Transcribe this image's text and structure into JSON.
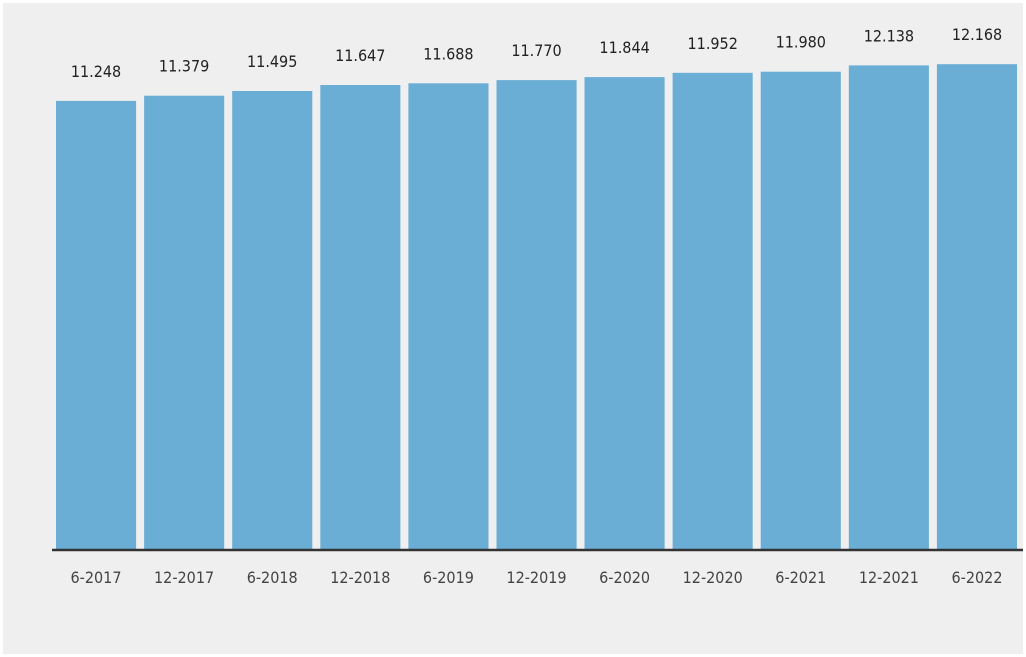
{
  "chart_data": {
    "type": "bar",
    "categories": [
      "6-2017",
      "12-2017",
      "6-2018",
      "12-2018",
      "6-2019",
      "12-2019",
      "6-2020",
      "12-2020",
      "6-2021",
      "12-2021",
      "6-2022"
    ],
    "values": [
      11248,
      11379,
      11495,
      11647,
      11688,
      11770,
      11844,
      11952,
      11980,
      12138,
      12168
    ],
    "data_labels": [
      "11.248",
      "11.379",
      "11.495",
      "11.647",
      "11.688",
      "11.770",
      "11.844",
      "11.952",
      "11.980",
      "12.138",
      "12.168"
    ],
    "ylim": [
      0,
      13700
    ],
    "grid": false,
    "colors": {
      "bar": "#6aaed6",
      "background": "#efefef",
      "axis": "#333333"
    }
  }
}
